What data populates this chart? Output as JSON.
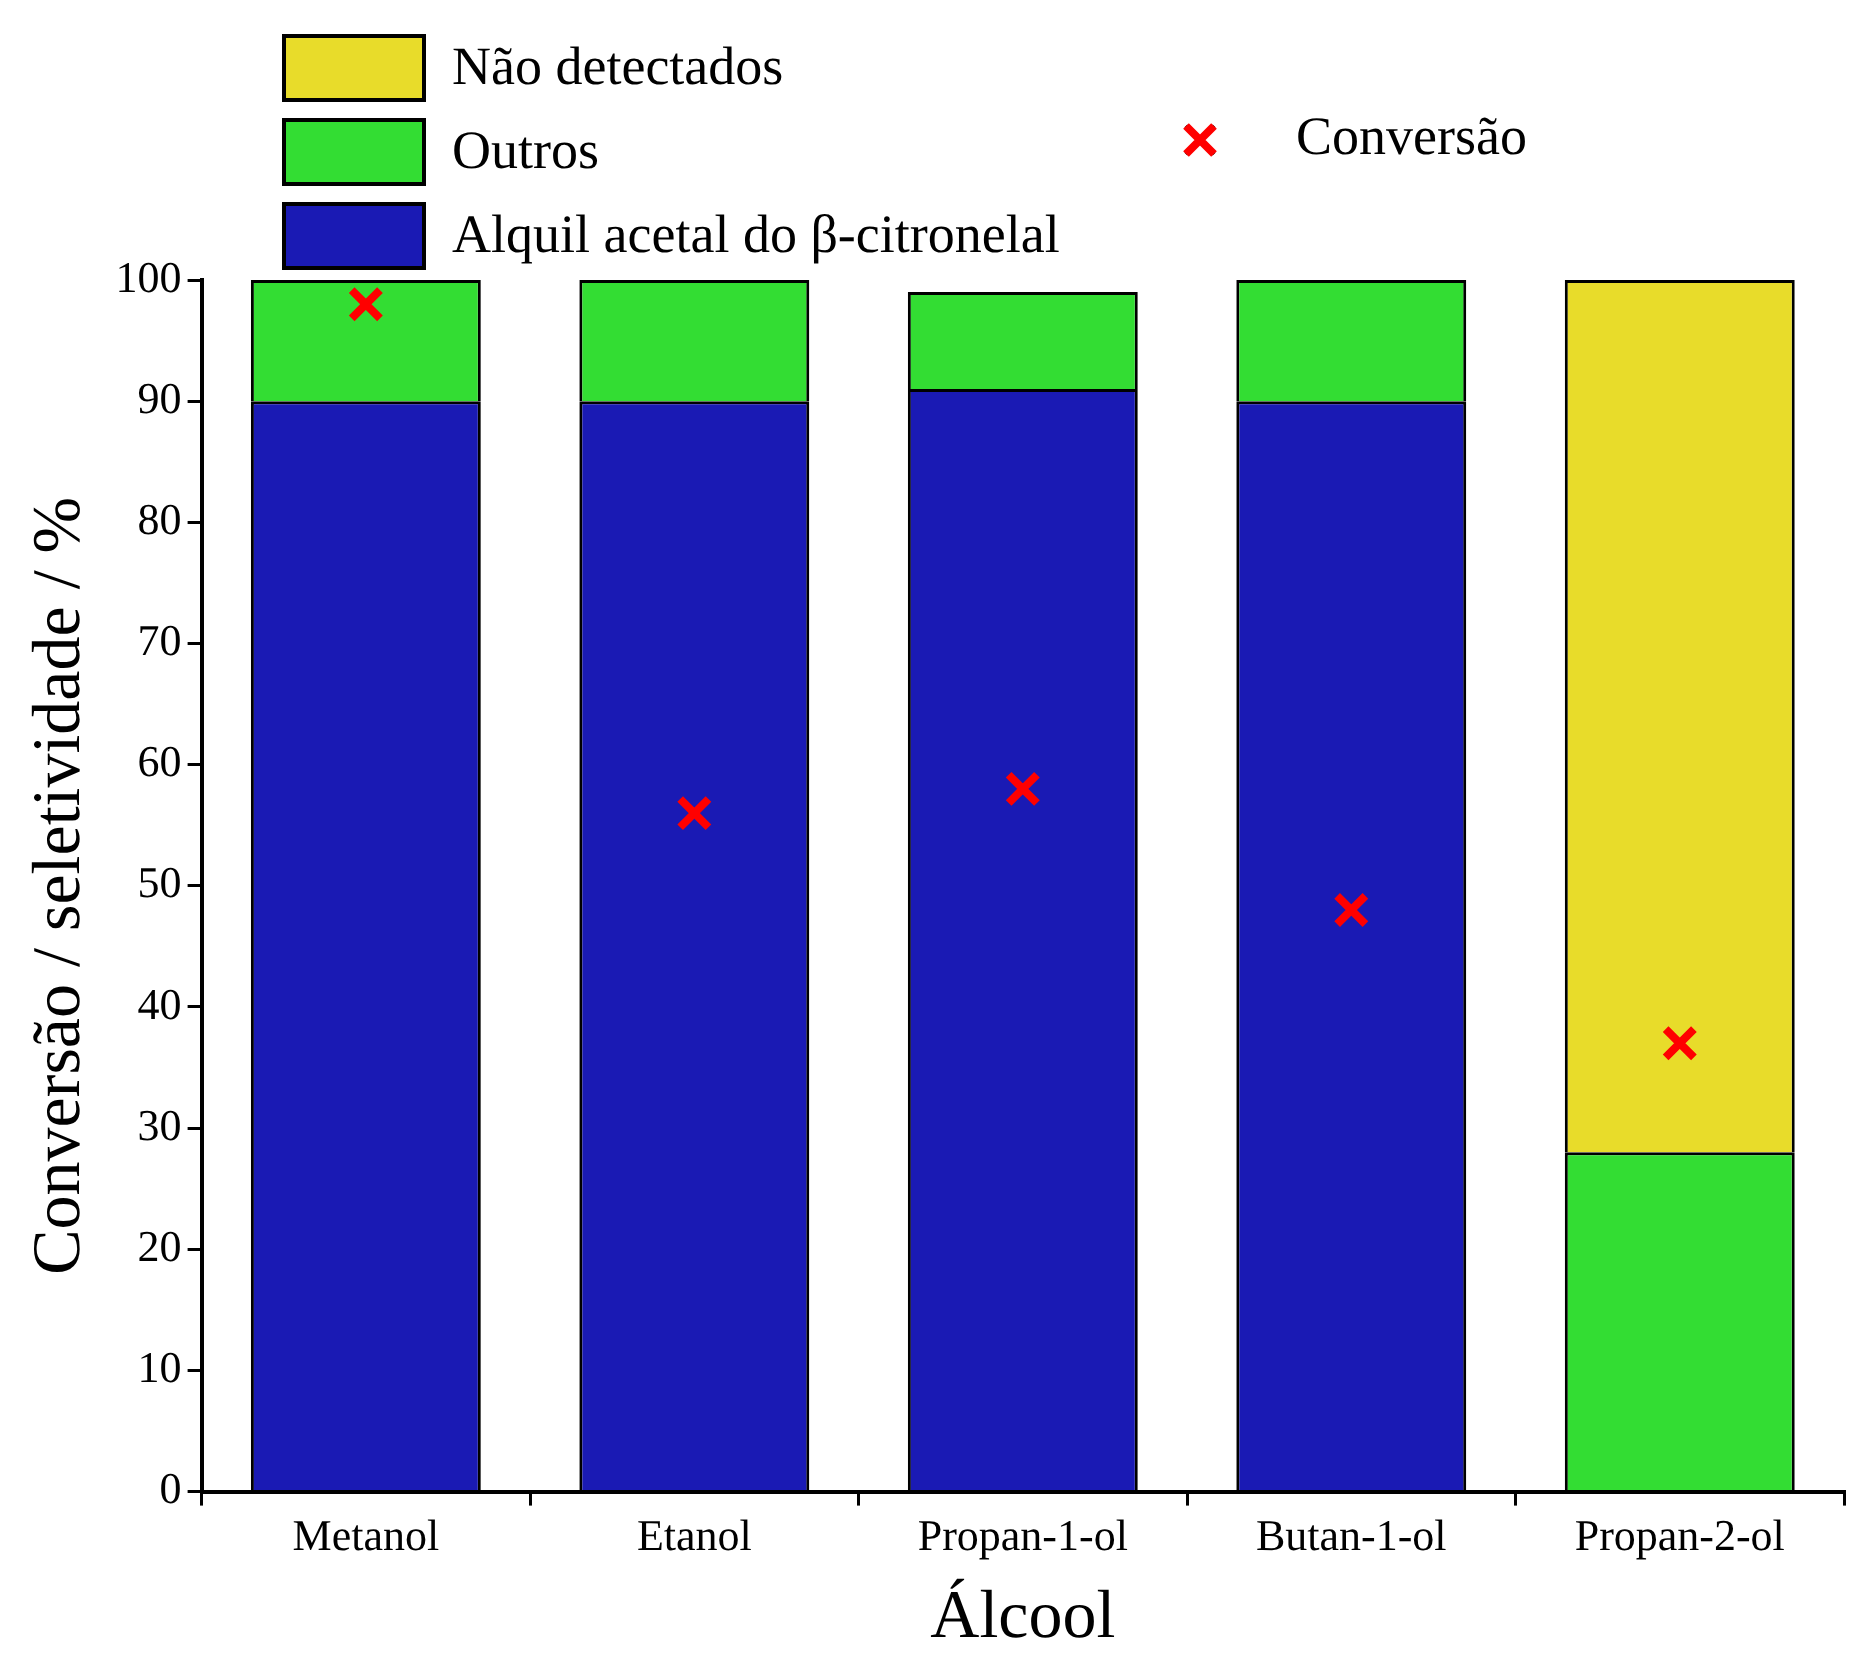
{
  "chart_data": {
    "type": "bar",
    "stacked": true,
    "xlabel": "Álcool",
    "ylabel": "Conversão / seletividade / %",
    "categories": [
      "Metanol",
      "Etanol",
      "Propan-1-ol",
      "Butan-1-ol",
      "Propan-2-ol"
    ],
    "series": [
      {
        "name": "Alquil acetal do β-citronelal",
        "color": "#1a1ab4",
        "values": [
          90,
          90,
          91,
          90,
          0
        ]
      },
      {
        "name": "Outros",
        "color": "#33dd33",
        "values": [
          10,
          10,
          8,
          10,
          28
        ]
      },
      {
        "name": "Não detectados",
        "color": "#e8dc2a",
        "values": [
          0,
          0,
          0,
          0,
          72
        ]
      },
      {
        "name": "Conversão",
        "type": "scatter",
        "color": "#ff0000",
        "marker": "cross",
        "x": [
          "Metanol",
          "Etanol",
          "Propan-1-ol",
          "Butan-1-ol",
          "Propan-2-ol"
        ],
        "values": [
          98,
          56,
          58,
          48,
          37
        ]
      }
    ],
    "ylim": [
      0,
      100
    ],
    "yticks": [
      0,
      10,
      20,
      30,
      40,
      50,
      60,
      70,
      80,
      90,
      100
    ],
    "grid": false,
    "legend": "top"
  }
}
